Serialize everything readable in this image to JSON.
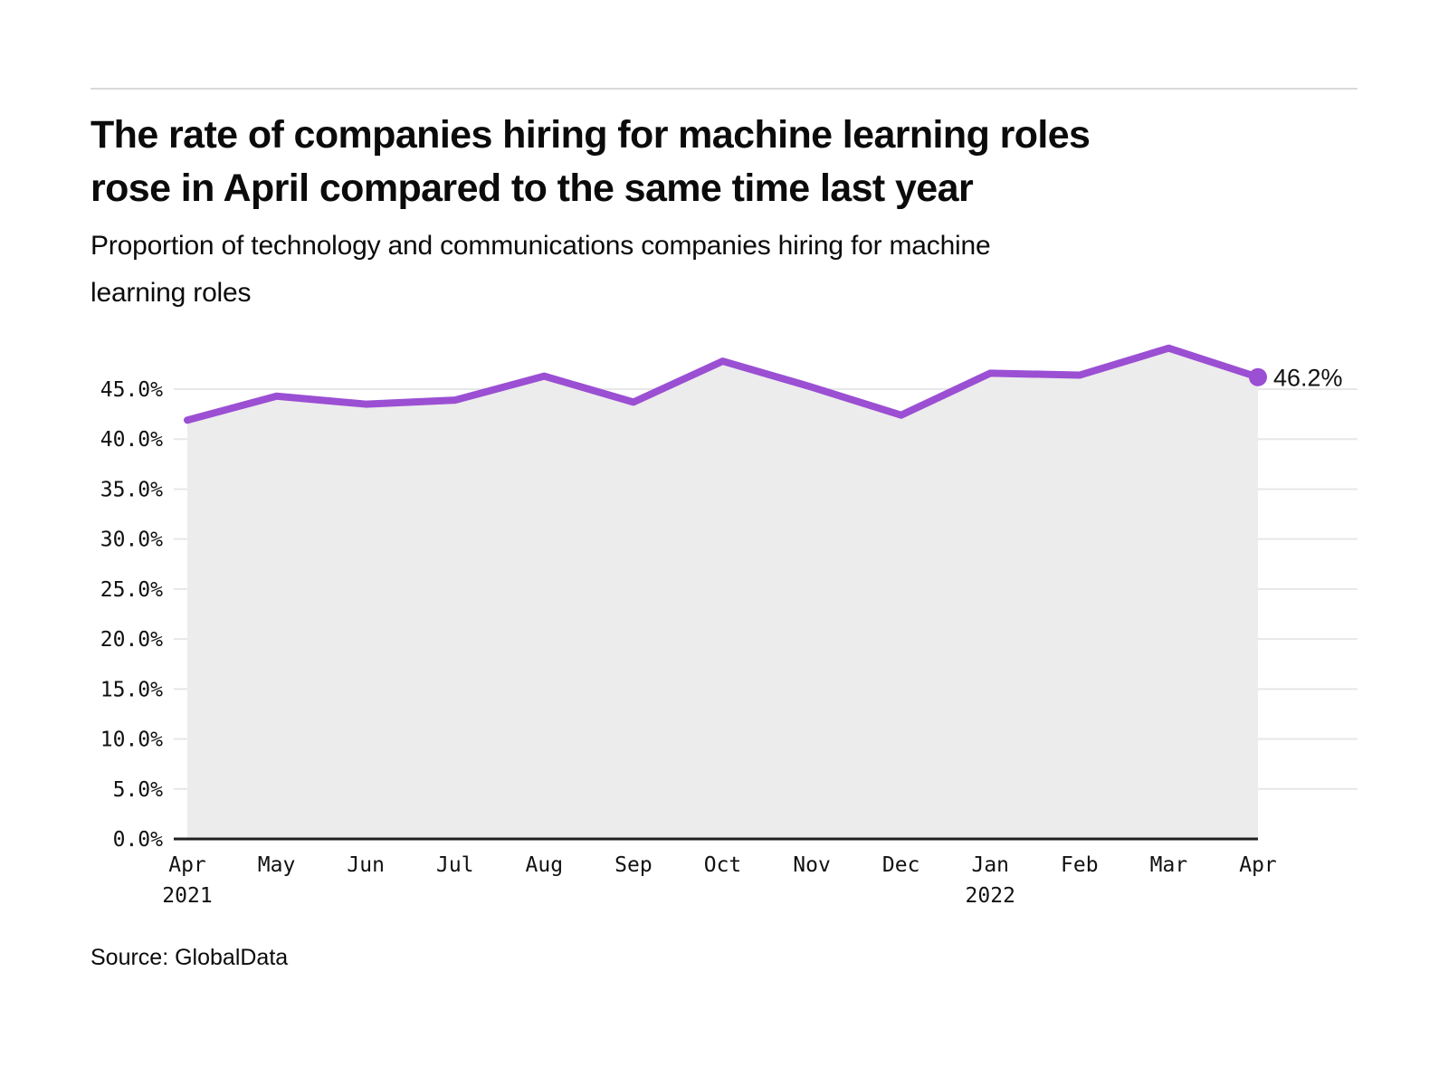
{
  "page": {
    "title_line1": "The rate of companies hiring for machine learning roles",
    "title_line2": "rose in April compared to the same time last year",
    "subtitle_line1": "Proportion of technology and communications companies hiring for machine",
    "subtitle_line2": "learning roles",
    "source": "Source: GlobalData"
  },
  "colors": {
    "line": "#9b4fd3",
    "area": "#ececec",
    "grid": "#e7e7e7",
    "axis": "#1f1f1f",
    "text": "#111111",
    "rule": "#d9d9d9"
  },
  "chart_data": {
    "type": "line",
    "title": "The rate of companies hiring for machine learning roles rose in April compared to the same time last year",
    "subtitle": "Proportion of technology and communications companies hiring for machine learning roles",
    "categories": [
      "Apr",
      "May",
      "Jun",
      "Jul",
      "Aug",
      "Sep",
      "Oct",
      "Nov",
      "Dec",
      "Jan",
      "Feb",
      "Mar",
      "Apr"
    ],
    "year_labels": [
      {
        "index": 0,
        "label": "2021"
      },
      {
        "index": 9,
        "label": "2022"
      }
    ],
    "series": [
      {
        "name": "Proportion of technology and communications companies hiring for machine learning roles",
        "values": [
          41.9,
          44.3,
          43.5,
          43.9,
          46.3,
          43.7,
          47.8,
          45.2,
          42.4,
          46.6,
          46.4,
          49.1,
          46.2
        ]
      }
    ],
    "unit": "%",
    "ylim": [
      0,
      50
    ],
    "y_ticks": [
      45,
      40,
      35,
      30,
      25,
      20,
      15,
      10,
      5,
      0
    ],
    "y_tick_labels": [
      "45.0%",
      "40.0%",
      "35.0%",
      "30.0%",
      "25.0%",
      "20.0%",
      "15.0%",
      "10.0%",
      "5.0%",
      "0.0%"
    ],
    "end_label": "46.2%",
    "grid": true,
    "legend": "none",
    "source": "Source: GlobalData"
  }
}
